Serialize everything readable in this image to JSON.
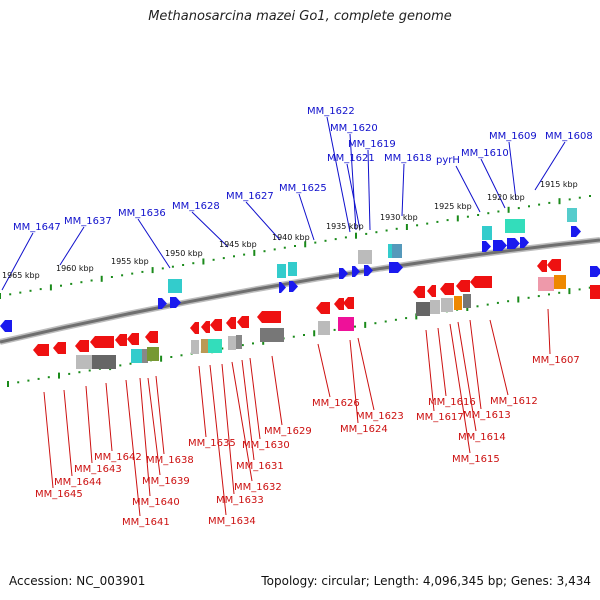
{
  "title": "Methanosarcina mazei Go1, complete genome",
  "footer": {
    "accession": "Accession: NC_003901",
    "topology": "Topology: circular; Length: 4,096,345 bp; Genes: 3,434"
  },
  "colors": {
    "forward_strand": "#1a1aee",
    "reverse_strand": "#ee1111",
    "tick": "#1a8a1a",
    "backbone": "#888888"
  },
  "scale_labels": [
    "1965 kbp",
    "1960 kbp",
    "1955 kbp",
    "1950 kbp",
    "1945 kbp",
    "1940 kbp",
    "1935 kbp",
    "1930 kbp",
    "1925 kbp",
    "1920 kbp",
    "1915 kbp"
  ],
  "top_genes": [
    "MM_1647",
    "MM_1637",
    "MM_1636",
    "MM_1628",
    "MM_1627",
    "MM_1625",
    "MM_1622",
    "MM_1620",
    "MM_1621",
    "MM_1619",
    "MM_1618",
    "pyrH",
    "MM_1610",
    "MM_1609",
    "MM_1608"
  ],
  "bottom_genes": [
    "MM_1645",
    "MM_1644",
    "MM_1643",
    "MM_1642",
    "MM_1641",
    "MM_1640",
    "MM_1639",
    "MM_1638",
    "MM_1635",
    "MM_1634",
    "MM_1633",
    "MM_1632",
    "MM_1631",
    "MM_1630",
    "MM_1629",
    "MM_1626",
    "MM_1624",
    "MM_1623",
    "MM_1617",
    "MM_1616",
    "MM_1615",
    "MM_1614",
    "MM_1613",
    "MM_1612",
    "MM_1607"
  ]
}
